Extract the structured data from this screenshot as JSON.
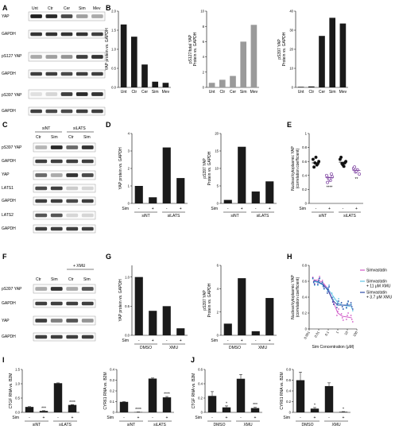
{
  "panels": {
    "A": {
      "letter": "A",
      "lanes": [
        "Unt",
        "Ctr",
        "Cer",
        "Sim",
        "Mev"
      ],
      "rows": [
        "YAP",
        "GAPDH",
        "pS127 YAP",
        "GAPDH",
        "pS397 YAP",
        "GAPDH"
      ]
    },
    "B": {
      "letter": "B"
    },
    "C": {
      "letter": "C",
      "groups": [
        "siNT",
        "siLATS"
      ],
      "lanes": [
        "Ctr",
        "Sim",
        "Ctr",
        "Sim"
      ],
      "rows": [
        "pS397 YAP",
        "GAPDH",
        "YAP",
        "LATS1",
        "GAPDH",
        "LATS2",
        "GAPDH"
      ]
    },
    "D": {
      "letter": "D"
    },
    "E": {
      "letter": "E"
    },
    "F": {
      "letter": "F",
      "group": "+ XMU",
      "lanes": [
        "Ctr",
        "Sim",
        "Ctr",
        "Sim"
      ],
      "rows": [
        "pS397 YAP",
        "GAPDH",
        "YAP",
        "GAPDH"
      ]
    },
    "G": {
      "letter": "G"
    },
    "H": {
      "letter": "H"
    },
    "I": {
      "letter": "I"
    },
    "J": {
      "letter": "J"
    }
  },
  "chart_data": [
    {
      "id": "B1",
      "type": "bar",
      "categories": [
        "Unt",
        "Ctr",
        "Cer",
        "Sim",
        "Mev"
      ],
      "values": [
        1.65,
        1.33,
        0.6,
        0.15,
        0.12
      ],
      "ylabel": "YAP protein vs. GAPDH",
      "ylim": [
        0,
        2
      ],
      "yticks": [
        0,
        0.5,
        1.0,
        1.5,
        2.0
      ],
      "color": "#1a1a1a"
    },
    {
      "id": "B2",
      "type": "bar",
      "categories": [
        "Unt",
        "Ctr",
        "Cer",
        "Sim",
        "Mev"
      ],
      "values": [
        0.6,
        1.0,
        1.5,
        6.0,
        8.2
      ],
      "ylabel": "pS127/total YAP Protein vs. GAPDH",
      "ylim": [
        0,
        10
      ],
      "yticks": [
        0,
        2,
        4,
        6,
        8,
        10
      ],
      "color": "#9a9a9a"
    },
    {
      "id": "B3",
      "type": "bar",
      "categories": [
        "Unt",
        "Ctr",
        "Cer",
        "Sim",
        "Mev"
      ],
      "values": [
        0.3,
        0.5,
        27,
        36.5,
        33.5
      ],
      "ylabel": "pS397 YAP Protein vs. GAPDH",
      "ylim": [
        0,
        40
      ],
      "yticks": [
        0,
        10,
        20,
        30,
        40
      ],
      "color": "#1a1a1a"
    },
    {
      "id": "D1",
      "type": "bar",
      "categories": [
        "-",
        "+",
        "-",
        "+"
      ],
      "values": [
        1.0,
        0.35,
        3.2,
        1.45
      ],
      "ylabel": "YAP protein vs. GAPDH",
      "ylim": [
        0,
        4
      ],
      "yticks": [
        0,
        1,
        2,
        3,
        4
      ],
      "xrow_label": "Sim",
      "groups": [
        "siNT",
        "siLATS"
      ],
      "color": "#1a1a1a"
    },
    {
      "id": "D2",
      "type": "bar",
      "categories": [
        "-",
        "+",
        "-",
        "+"
      ],
      "values": [
        1.0,
        16.2,
        3.4,
        6.3
      ],
      "ylabel": "pS397 YAP Protein vs. GAPDH",
      "ylim": [
        0,
        20
      ],
      "yticks": [
        0,
        5,
        10,
        15,
        20
      ],
      "xrow_label": "Sim",
      "groups": [
        "siNT",
        "siLATS"
      ],
      "color": "#1a1a1a"
    },
    {
      "id": "E",
      "type": "scatter",
      "categories": [
        "-",
        "+",
        "-",
        "+"
      ],
      "ylabel": "Nuclear/cytoplasmic YAP (correlation coefficient)",
      "ylim": [
        0,
        1.0
      ],
      "yticks": [
        0,
        0.2,
        0.4,
        0.6,
        0.8,
        1.0
      ],
      "xrow_label": "Sim",
      "groups": [
        "siNT",
        "siLATS"
      ],
      "points": [
        [
          0.63,
          0.58,
          0.55,
          0.6,
          0.52,
          0.66,
          0.57
        ],
        [
          0.4,
          0.36,
          0.33,
          0.38,
          0.3,
          0.35,
          0.42
        ],
        [
          0.63,
          0.57,
          0.53,
          0.6,
          0.66,
          0.55,
          0.58
        ],
        [
          0.5,
          0.45,
          0.48,
          0.42,
          0.52,
          0.46
        ]
      ],
      "means": [
        0.58,
        0.37,
        0.59,
        0.47
      ],
      "colors": [
        "#111111",
        "#7a3d9e",
        "#111111",
        "#7a3d9e"
      ],
      "annotations": [
        {
          "group": 1,
          "text": "****"
        },
        {
          "group": 3,
          "text": "**"
        }
      ]
    },
    {
      "id": "G1",
      "type": "bar",
      "categories": [
        "-",
        "+",
        "-",
        "+"
      ],
      "values": [
        1.0,
        0.42,
        0.5,
        0.12
      ],
      "ylabel": "YAP protein vs. GAPDH",
      "ylim": [
        0,
        1.2
      ],
      "yticks": [
        0,
        0.5,
        1.0
      ],
      "xrow_label": "Sim",
      "groups": [
        "DMSO",
        "XMU"
      ],
      "color": "#1a1a1a"
    },
    {
      "id": "G2",
      "type": "bar",
      "categories": [
        "-",
        "+",
        "-",
        "+"
      ],
      "values": [
        1.0,
        4.9,
        0.35,
        3.2
      ],
      "ylabel": "pS397 YAP Protein vs. GAPDH",
      "ylim": [
        0,
        6
      ],
      "yticks": [
        0,
        2,
        4,
        6
      ],
      "xrow_label": "Sim",
      "groups": [
        "DMSO",
        "XMU"
      ],
      "color": "#1a1a1a"
    },
    {
      "id": "H",
      "type": "line",
      "xlabel": "Sim Concentration (μM)",
      "ylabel": "Nuclear/cytoplasmic YAP (correlation coefficient)",
      "xscale": "log",
      "xlim": [
        0.001,
        100
      ],
      "xticks": [
        "0.001",
        "0.01",
        "0.1",
        "1",
        "10",
        "100"
      ],
      "ylim": [
        0,
        0.8
      ],
      "yticks": [
        0,
        0.2,
        0.4,
        0.6,
        0.8
      ],
      "series": [
        {
          "name": "Simvastatin",
          "color": "#d25bc8",
          "x": [
            0.003,
            0.01,
            0.03,
            0.1,
            0.3,
            1,
            3,
            10,
            30
          ],
          "y": [
            0.62,
            0.61,
            0.58,
            0.5,
            0.36,
            0.2,
            0.16,
            0.15,
            0.14
          ]
        },
        {
          "name": "Simvastatin + 11 μM XMU",
          "color": "#62c4e5",
          "x": [
            0.003,
            0.01,
            0.03,
            0.1,
            0.3,
            1,
            3,
            10,
            30
          ],
          "y": [
            0.6,
            0.58,
            0.55,
            0.5,
            0.42,
            0.33,
            0.3,
            0.29,
            0.28
          ]
        },
        {
          "name": "Simvastatin + 3.7 μM XMU",
          "color": "#2c4aa6",
          "x": [
            0.003,
            0.01,
            0.03,
            0.1,
            0.3,
            1,
            3,
            10,
            30
          ],
          "y": [
            0.61,
            0.59,
            0.56,
            0.48,
            0.36,
            0.3,
            0.3,
            0.3,
            0.3
          ]
        }
      ]
    },
    {
      "id": "I1",
      "type": "bar",
      "categories": [
        "-",
        "+",
        "-",
        "+"
      ],
      "values": [
        0.19,
        0.05,
        1.02,
        0.26
      ],
      "errors": [
        0.01,
        0.01,
        0.01,
        0.01
      ],
      "annotations": [
        "",
        "***",
        "",
        "****"
      ],
      "ylabel": "CTGF RNA vs. B2M",
      "ylim": [
        0,
        1.5
      ],
      "yticks": [
        0,
        0.5,
        1.0,
        1.5
      ],
      "xrow_label": "Sim",
      "groups": [
        "siNT",
        "siLATS"
      ],
      "color": "#1a1a1a"
    },
    {
      "id": "I2",
      "type": "bar",
      "categories": [
        "-",
        "+",
        "-",
        "+"
      ],
      "values": [
        0.098,
        0.003,
        0.315,
        0.14
      ],
      "errors": [
        0.002,
        0.001,
        0.005,
        0.008
      ],
      "annotations": [
        "",
        "****",
        "",
        "****"
      ],
      "ylabel": "CYR61 RNA vs. B2M",
      "ylim": [
        0,
        0.4
      ],
      "yticks": [
        0,
        0.1,
        0.2,
        0.3,
        0.4
      ],
      "xrow_label": "Sim",
      "groups": [
        "siNT",
        "siLATS"
      ],
      "color": "#1a1a1a"
    },
    {
      "id": "J1",
      "type": "bar",
      "categories": [
        "-",
        "+",
        "-",
        "+"
      ],
      "values": [
        0.23,
        0.07,
        0.47,
        0.06
      ],
      "errors": [
        0.06,
        0.02,
        0.06,
        0.01
      ],
      "annotations": [
        "",
        "*",
        "",
        "***"
      ],
      "ylabel": "CTGF RNA vs. B2M",
      "ylim": [
        0,
        0.6
      ],
      "yticks": [
        0,
        0.2,
        0.4,
        0.6
      ],
      "xrow_label": "Sim",
      "groups": [
        "DMSO",
        "XMU"
      ],
      "color": "#1a1a1a"
    },
    {
      "id": "J2",
      "type": "bar",
      "categories": [
        "-",
        "+",
        "-",
        "+"
      ],
      "values": [
        0.6,
        0.07,
        0.49,
        0.01
      ],
      "errors": [
        0.15,
        0.02,
        0.06,
        0.005
      ],
      "annotations": [
        "",
        "*",
        "",
        "*"
      ],
      "ylabel": "CYR61 RNA vs. B2M",
      "ylim": [
        0,
        0.8
      ],
      "yticks": [
        0,
        0.2,
        0.4,
        0.6,
        0.8
      ],
      "xrow_label": "Sim",
      "groups": [
        "DMSO",
        "XMU"
      ],
      "color": "#1a1a1a"
    }
  ]
}
